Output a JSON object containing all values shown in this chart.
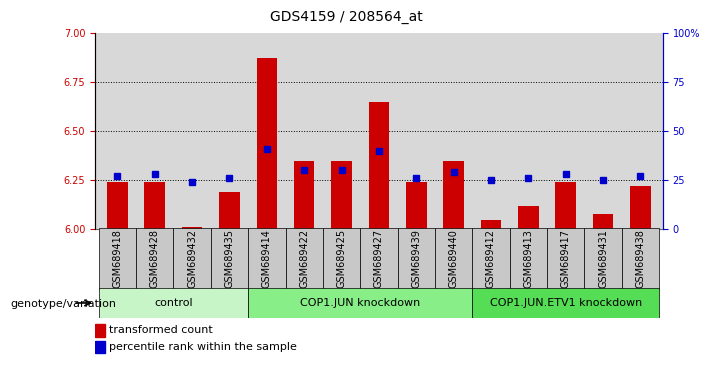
{
  "title": "GDS4159 / 208564_at",
  "samples": [
    "GSM689418",
    "GSM689428",
    "GSM689432",
    "GSM689435",
    "GSM689414",
    "GSM689422",
    "GSM689425",
    "GSM689427",
    "GSM689439",
    "GSM689440",
    "GSM689412",
    "GSM689413",
    "GSM689417",
    "GSM689431",
    "GSM689438"
  ],
  "transformed_count": [
    6.24,
    6.24,
    6.01,
    6.19,
    6.87,
    6.35,
    6.35,
    6.65,
    6.24,
    6.35,
    6.05,
    6.12,
    6.24,
    6.08,
    6.22
  ],
  "percentile_rank": [
    27,
    28,
    24,
    26,
    41,
    30,
    30,
    40,
    26,
    29,
    25,
    26,
    28,
    25,
    27
  ],
  "groups": [
    {
      "label": "control",
      "start": 0,
      "end": 4,
      "color": "#c8f5c8"
    },
    {
      "label": "COP1.JUN knockdown",
      "start": 4,
      "end": 10,
      "color": "#88ee88"
    },
    {
      "label": "COP1.JUN.ETV1 knockdown",
      "start": 10,
      "end": 15,
      "color": "#55dd55"
    }
  ],
  "ylim_left": [
    6.0,
    7.0
  ],
  "ylim_right": [
    0,
    100
  ],
  "yticks_left": [
    6.0,
    6.25,
    6.5,
    6.75,
    7.0
  ],
  "yticks_right": [
    0,
    25,
    50,
    75,
    100
  ],
  "bar_color": "#cc0000",
  "dot_color": "#0000cc",
  "plot_bg": "#d8d8d8",
  "left_axis_color": "#cc0000",
  "right_axis_color": "#0000cc",
  "grid_dotted_ticks": [
    6.25,
    6.5,
    6.75
  ],
  "genotype_label": "genotype/variation",
  "legend_transformed": "transformed count",
  "legend_percentile": "percentile rank within the sample",
  "sample_box_color": "#c8c8c8",
  "title_fontsize": 10,
  "tick_fontsize": 7,
  "group_fontsize": 8,
  "legend_fontsize": 8
}
